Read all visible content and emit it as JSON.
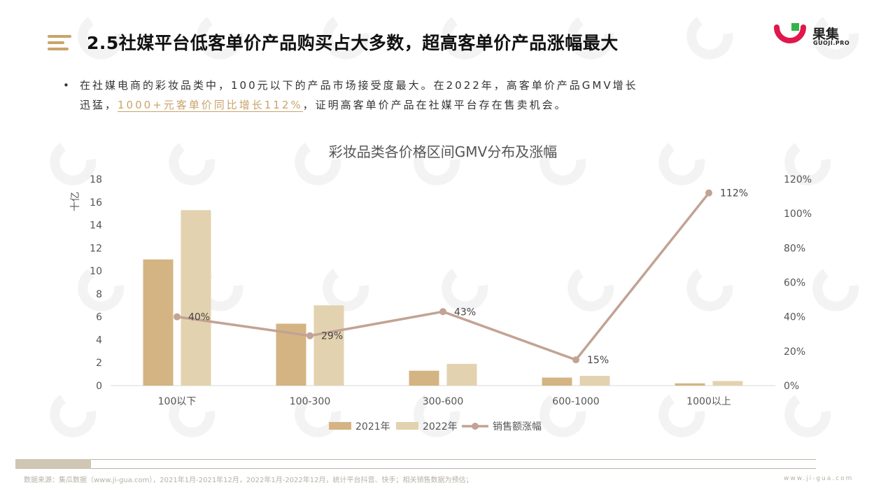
{
  "page": {
    "title": "2.5社媒平台低客单价产品购买占大多数，超高客单价产品涨幅最大",
    "logo_name": "果集",
    "logo_sub": "GUOJI.PRO",
    "bullet_line1": "在社媒电商的彩妆品类中，100元以下的产品市场接受度最大。在2022年，高客单价产品GMV增长",
    "bullet_line2_prefix": "迅猛，",
    "bullet_line2_highlight": "1000+元客单价同比增长112%",
    "bullet_line2_suffix": "，证明高客单价产品在社媒平台存在售卖机会。",
    "footer_source": "数据来源：集瓜数据（www.ji-gua.com），2021年1月-2021年12月，2022年1月-2022年12月，统计平台抖音、快手；相关销售数据为预估；",
    "footer_url": "www.ji-gua.com",
    "colors": {
      "accent": "#c9a46a",
      "bar_2021": "#d4b483",
      "bar_2022": "#e3d2af",
      "line": "#c2a394",
      "logo_red": "#e0174b",
      "logo_green": "#32b44a"
    }
  },
  "chart_data": {
    "type": "bar",
    "title": "彩妆品类各价格区间GMV分布及涨幅",
    "ylabel": "十亿",
    "categories": [
      "100以下",
      "100-300",
      "300-600",
      "600-1000",
      "1000以上"
    ],
    "series": [
      {
        "name": "2021年",
        "type": "bar",
        "values": [
          11.0,
          5.4,
          1.3,
          0.7,
          0.2
        ]
      },
      {
        "name": "2022年",
        "type": "bar",
        "values": [
          15.3,
          7.0,
          1.9,
          0.85,
          0.4
        ]
      },
      {
        "name": "销售额涨幅",
        "type": "line",
        "axis": "right",
        "values": [
          40,
          29,
          43,
          15,
          112
        ],
        "labels": [
          "40%",
          "29%",
          "43%",
          "15%",
          "112%"
        ]
      }
    ],
    "ylim": [
      0,
      18
    ],
    "yticks": [
      "0",
      "2",
      "4",
      "6",
      "8",
      "10",
      "12",
      "14",
      "16",
      "18"
    ],
    "y2lim": [
      0,
      120
    ],
    "y2ticks": [
      "0%",
      "20%",
      "40%",
      "60%",
      "80%",
      "100%",
      "120%"
    ],
    "legend_position": "bottom",
    "grid": false
  }
}
